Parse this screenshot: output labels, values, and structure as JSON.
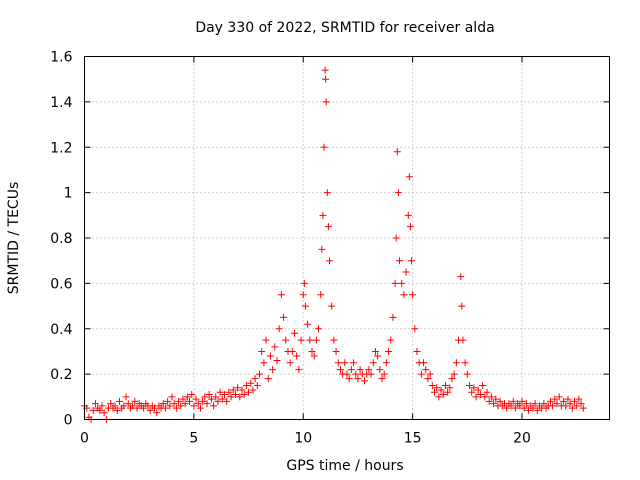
{
  "chart_data": {
    "type": "scatter",
    "title": "Day 330 of 2022, SRMTID for receiver alda",
    "xlabel": "GPS time / hours",
    "ylabel": "SRMTID / TECUs",
    "xlim": [
      0,
      24
    ],
    "ylim": [
      0,
      1.6
    ],
    "xticks": [
      0,
      5,
      10,
      15,
      20
    ],
    "xtick_labels": [
      "0",
      "5",
      "10",
      "15",
      "20"
    ],
    "yticks": [
      0,
      0.2,
      0.4,
      0.6,
      0.8,
      1.0,
      1.2,
      1.4,
      1.6
    ],
    "ytick_labels": [
      "0",
      "0.2",
      "0.4",
      "0.6",
      "0.8",
      "1",
      "1.2",
      "1.4",
      "1.6"
    ],
    "grid": true,
    "marker": "+",
    "color": "#ff0000",
    "series": [
      {
        "name": "SRMTID",
        "points": [
          [
            0.0,
            0.06
          ],
          [
            0.1,
            0.05
          ],
          [
            0.2,
            0.01
          ],
          [
            0.3,
            0.0
          ],
          [
            0.4,
            0.04
          ],
          [
            0.5,
            0.07
          ],
          [
            0.6,
            0.05
          ],
          [
            0.7,
            0.04
          ],
          [
            0.8,
            0.06
          ],
          [
            0.9,
            0.03
          ],
          [
            1.0,
            0.0
          ],
          [
            1.1,
            0.05
          ],
          [
            1.2,
            0.07
          ],
          [
            1.3,
            0.05
          ],
          [
            1.4,
            0.06
          ],
          [
            1.5,
            0.04
          ],
          [
            1.6,
            0.08
          ],
          [
            1.7,
            0.05
          ],
          [
            1.8,
            0.06
          ],
          [
            1.9,
            0.1
          ],
          [
            2.0,
            0.07
          ],
          [
            2.1,
            0.05
          ],
          [
            2.2,
            0.06
          ],
          [
            2.3,
            0.08
          ],
          [
            2.4,
            0.05
          ],
          [
            2.5,
            0.07
          ],
          [
            2.6,
            0.06
          ],
          [
            2.7,
            0.05
          ],
          [
            2.8,
            0.07
          ],
          [
            2.9,
            0.06
          ],
          [
            3.0,
            0.04
          ],
          [
            3.1,
            0.06
          ],
          [
            3.2,
            0.05
          ],
          [
            3.3,
            0.03
          ],
          [
            3.4,
            0.06
          ],
          [
            3.5,
            0.05
          ],
          [
            3.6,
            0.07
          ],
          [
            3.7,
            0.05
          ],
          [
            3.8,
            0.08
          ],
          [
            3.9,
            0.06
          ],
          [
            4.0,
            0.1
          ],
          [
            4.1,
            0.07
          ],
          [
            4.2,
            0.05
          ],
          [
            4.3,
            0.08
          ],
          [
            4.4,
            0.06
          ],
          [
            4.5,
            0.09
          ],
          [
            4.6,
            0.07
          ],
          [
            4.7,
            0.1
          ],
          [
            4.8,
            0.08
          ],
          [
            4.9,
            0.11
          ],
          [
            5.0,
            0.06
          ],
          [
            5.1,
            0.09
          ],
          [
            5.2,
            0.07
          ],
          [
            5.3,
            0.05
          ],
          [
            5.4,
            0.08
          ],
          [
            5.5,
            0.1
          ],
          [
            5.6,
            0.07
          ],
          [
            5.7,
            0.11
          ],
          [
            5.8,
            0.09
          ],
          [
            5.9,
            0.06
          ],
          [
            6.0,
            0.1
          ],
          [
            6.1,
            0.08
          ],
          [
            6.2,
            0.12
          ],
          [
            6.3,
            0.09
          ],
          [
            6.4,
            0.11
          ],
          [
            6.5,
            0.08
          ],
          [
            6.6,
            0.12
          ],
          [
            6.7,
            0.1
          ],
          [
            6.8,
            0.13
          ],
          [
            6.9,
            0.11
          ],
          [
            7.0,
            0.14
          ],
          [
            7.1,
            0.1
          ],
          [
            7.2,
            0.13
          ],
          [
            7.3,
            0.11
          ],
          [
            7.4,
            0.15
          ],
          [
            7.5,
            0.12
          ],
          [
            7.6,
            0.16
          ],
          [
            7.7,
            0.13
          ],
          [
            7.8,
            0.18
          ],
          [
            7.9,
            0.15
          ],
          [
            8.0,
            0.2
          ],
          [
            8.1,
            0.3
          ],
          [
            8.2,
            0.25
          ],
          [
            8.3,
            0.35
          ],
          [
            8.4,
            0.18
          ],
          [
            8.5,
            0.28
          ],
          [
            8.6,
            0.22
          ],
          [
            8.7,
            0.32
          ],
          [
            8.8,
            0.26
          ],
          [
            8.9,
            0.4
          ],
          [
            9.0,
            0.55
          ],
          [
            9.1,
            0.45
          ],
          [
            9.2,
            0.35
          ],
          [
            9.3,
            0.3
          ],
          [
            9.4,
            0.25
          ],
          [
            9.5,
            0.3
          ],
          [
            9.6,
            0.38
          ],
          [
            9.7,
            0.28
          ],
          [
            9.8,
            0.22
          ],
          [
            9.9,
            0.35
          ],
          [
            10.0,
            0.55
          ],
          [
            10.05,
            0.6
          ],
          [
            10.1,
            0.5
          ],
          [
            10.2,
            0.42
          ],
          [
            10.3,
            0.35
          ],
          [
            10.4,
            0.3
          ],
          [
            10.5,
            0.28
          ],
          [
            10.6,
            0.35
          ],
          [
            10.7,
            0.4
          ],
          [
            10.8,
            0.55
          ],
          [
            10.85,
            0.75
          ],
          [
            10.9,
            0.9
          ],
          [
            10.95,
            1.2
          ],
          [
            11.0,
            1.54
          ],
          [
            11.02,
            1.5
          ],
          [
            11.05,
            1.4
          ],
          [
            11.1,
            1.0
          ],
          [
            11.15,
            0.85
          ],
          [
            11.2,
            0.7
          ],
          [
            11.3,
            0.5
          ],
          [
            11.4,
            0.35
          ],
          [
            11.5,
            0.3
          ],
          [
            11.6,
            0.25
          ],
          [
            11.7,
            0.22
          ],
          [
            11.8,
            0.2
          ],
          [
            11.9,
            0.25
          ],
          [
            12.0,
            0.2
          ],
          [
            12.1,
            0.18
          ],
          [
            12.2,
            0.22
          ],
          [
            12.3,
            0.25
          ],
          [
            12.4,
            0.2
          ],
          [
            12.5,
            0.18
          ],
          [
            12.6,
            0.22
          ],
          [
            12.7,
            0.2
          ],
          [
            12.8,
            0.17
          ],
          [
            12.9,
            0.2
          ],
          [
            13.0,
            0.22
          ],
          [
            13.1,
            0.2
          ],
          [
            13.2,
            0.25
          ],
          [
            13.3,
            0.3
          ],
          [
            13.4,
            0.28
          ],
          [
            13.5,
            0.22
          ],
          [
            13.6,
            0.18
          ],
          [
            13.7,
            0.2
          ],
          [
            13.8,
            0.25
          ],
          [
            13.9,
            0.3
          ],
          [
            14.0,
            0.35
          ],
          [
            14.1,
            0.45
          ],
          [
            14.2,
            0.6
          ],
          [
            14.25,
            0.8
          ],
          [
            14.3,
            1.18
          ],
          [
            14.35,
            1.0
          ],
          [
            14.4,
            0.7
          ],
          [
            14.5,
            0.6
          ],
          [
            14.6,
            0.55
          ],
          [
            14.7,
            0.65
          ],
          [
            14.8,
            0.9
          ],
          [
            14.85,
            1.07
          ],
          [
            14.9,
            0.85
          ],
          [
            14.95,
            0.7
          ],
          [
            15.0,
            0.55
          ],
          [
            15.1,
            0.4
          ],
          [
            15.2,
            0.3
          ],
          [
            15.3,
            0.25
          ],
          [
            15.4,
            0.2
          ],
          [
            15.5,
            0.25
          ],
          [
            15.6,
            0.22
          ],
          [
            15.7,
            0.18
          ],
          [
            15.8,
            0.2
          ],
          [
            15.9,
            0.15
          ],
          [
            16.0,
            0.12
          ],
          [
            16.1,
            0.14
          ],
          [
            16.2,
            0.1
          ],
          [
            16.3,
            0.13
          ],
          [
            16.4,
            0.11
          ],
          [
            16.5,
            0.15
          ],
          [
            16.6,
            0.12
          ],
          [
            16.7,
            0.14
          ],
          [
            16.8,
            0.18
          ],
          [
            16.9,
            0.2
          ],
          [
            17.0,
            0.25
          ],
          [
            17.1,
            0.35
          ],
          [
            17.2,
            0.63
          ],
          [
            17.25,
            0.5
          ],
          [
            17.3,
            0.35
          ],
          [
            17.4,
            0.25
          ],
          [
            17.5,
            0.2
          ],
          [
            17.6,
            0.15
          ],
          [
            17.7,
            0.12
          ],
          [
            17.8,
            0.14
          ],
          [
            17.9,
            0.1
          ],
          [
            18.0,
            0.13
          ],
          [
            18.1,
            0.11
          ],
          [
            18.2,
            0.15
          ],
          [
            18.3,
            0.1
          ],
          [
            18.4,
            0.12
          ],
          [
            18.5,
            0.08
          ],
          [
            18.6,
            0.1
          ],
          [
            18.7,
            0.07
          ],
          [
            18.8,
            0.09
          ],
          [
            18.9,
            0.06
          ],
          [
            19.0,
            0.08
          ],
          [
            19.1,
            0.06
          ],
          [
            19.2,
            0.07
          ],
          [
            19.3,
            0.05
          ],
          [
            19.4,
            0.07
          ],
          [
            19.5,
            0.06
          ],
          [
            19.6,
            0.08
          ],
          [
            19.7,
            0.05
          ],
          [
            19.8,
            0.07
          ],
          [
            19.9,
            0.06
          ],
          [
            20.0,
            0.08
          ],
          [
            20.1,
            0.05
          ],
          [
            20.2,
            0.07
          ],
          [
            20.3,
            0.04
          ],
          [
            20.4,
            0.06
          ],
          [
            20.5,
            0.05
          ],
          [
            20.6,
            0.07
          ],
          [
            20.7,
            0.04
          ],
          [
            20.8,
            0.06
          ],
          [
            20.9,
            0.05
          ],
          [
            21.0,
            0.07
          ],
          [
            21.1,
            0.05
          ],
          [
            21.2,
            0.06
          ],
          [
            21.3,
            0.08
          ],
          [
            21.4,
            0.06
          ],
          [
            21.5,
            0.09
          ],
          [
            21.6,
            0.07
          ],
          [
            21.7,
            0.1
          ],
          [
            21.8,
            0.06
          ],
          [
            21.9,
            0.08
          ],
          [
            22.0,
            0.06
          ],
          [
            22.1,
            0.09
          ],
          [
            22.2,
            0.07
          ],
          [
            22.3,
            0.05
          ],
          [
            22.4,
            0.08
          ],
          [
            22.5,
            0.06
          ],
          [
            22.6,
            0.09
          ],
          [
            22.7,
            0.07
          ],
          [
            22.8,
            0.05
          ]
        ]
      }
    ]
  }
}
